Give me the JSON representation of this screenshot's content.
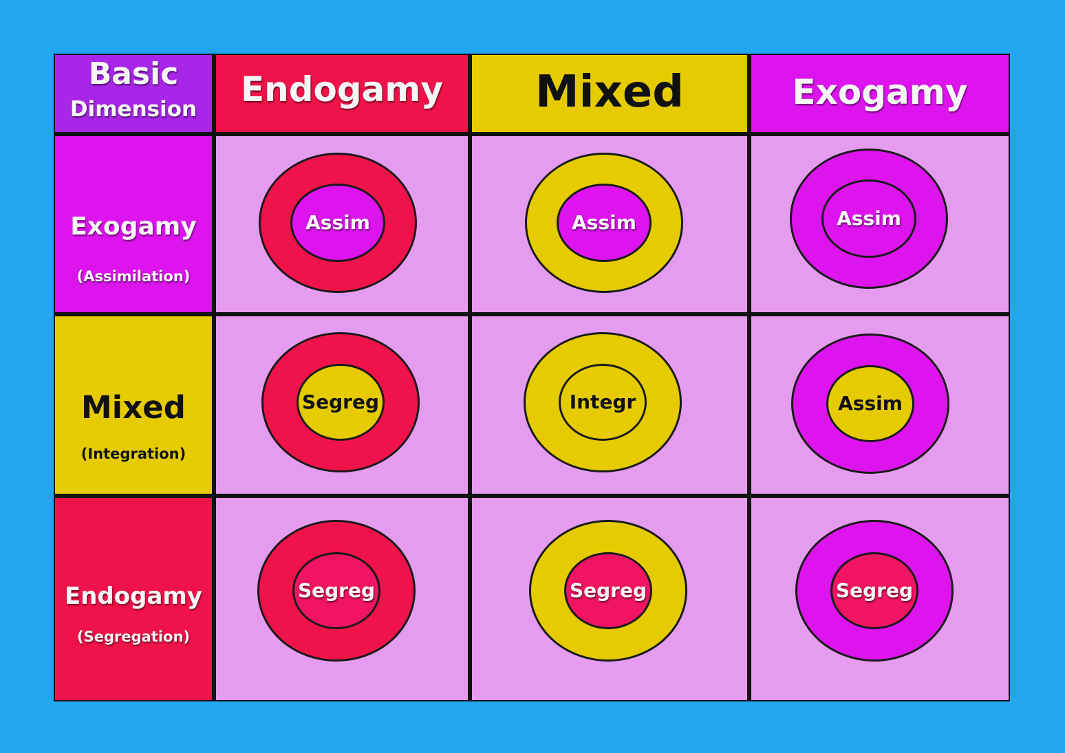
{
  "colors": {
    "background": "#22a6f0",
    "cell_fill": "#e59cef",
    "endogamy": "#f0124a",
    "mixed": "#e5cb00",
    "exogamy": "#dd14ee",
    "corner": "#a726e8",
    "segreg_inner": "#f01462"
  },
  "corner": {
    "line1": "Basic",
    "line2": "Dimension"
  },
  "columns": [
    {
      "label": "Endogamy",
      "color_key": "endogamy"
    },
    {
      "label": "Mixed",
      "color_key": "mixed"
    },
    {
      "label": "Exogamy",
      "color_key": "exogamy"
    }
  ],
  "rows": [
    {
      "label": "Exogamy",
      "sub": "(Assimilation)",
      "color_key": "exogamy"
    },
    {
      "label": "Mixed",
      "sub": "(Integration)",
      "color_key": "mixed"
    },
    {
      "label": "Endogamy",
      "sub": "(Segregation)",
      "color_key": "endogamy"
    }
  ],
  "cells": [
    [
      {
        "outer": "endogamy",
        "inner": "exogamy",
        "text": "Assim",
        "text_color": "light"
      },
      {
        "outer": "mixed",
        "inner": "exogamy",
        "text": "Assim",
        "text_color": "light"
      },
      {
        "outer": "exogamy",
        "inner": "exogamy",
        "text": "Assim",
        "text_color": "light"
      }
    ],
    [
      {
        "outer": "endogamy",
        "inner": "mixed",
        "text": "Segreg",
        "text_color": "dark"
      },
      {
        "outer": "mixed",
        "inner": "mixed",
        "text": "Integr",
        "text_color": "dark"
      },
      {
        "outer": "exogamy",
        "inner": "mixed",
        "text": "Assim",
        "text_color": "dark"
      }
    ],
    [
      {
        "outer": "endogamy",
        "inner": "segreg_inner",
        "text": "Segreg",
        "text_color": "light"
      },
      {
        "outer": "mixed",
        "inner": "segreg_inner",
        "text": "Segreg",
        "text_color": "light"
      },
      {
        "outer": "exogamy",
        "inner": "segreg_inner",
        "text": "Segreg",
        "text_color": "light"
      }
    ]
  ]
}
